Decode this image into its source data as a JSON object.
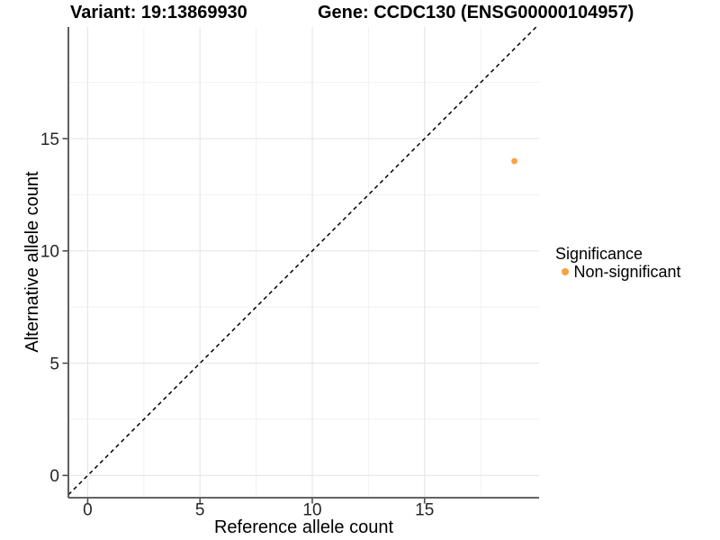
{
  "figure": {
    "title_left": "Variant: 19:13869930",
    "title_right": "Gene: CCDC130 (ENSG00000104957)"
  },
  "chart_data": {
    "type": "scatter",
    "title": "Variant: 19:13869930   Gene: CCDC130 (ENSG00000104957)",
    "xlabel": "Reference allele count",
    "ylabel": "Alternative allele count",
    "xlim": [
      -0.86,
      20.1
    ],
    "ylim": [
      -0.99,
      19.97
    ],
    "xticks": [
      0,
      5,
      10,
      15
    ],
    "yticks": [
      0,
      5,
      10,
      15
    ],
    "grid": {
      "major": true,
      "minor": true
    },
    "background": "#ffffff",
    "reference_line": {
      "kind": "abline",
      "slope": 1,
      "intercept": 0,
      "style": "dashed",
      "color": "#000000"
    },
    "series": [
      {
        "name": "Non-significant",
        "color": "#F9A242",
        "points": [
          {
            "x": 19,
            "y": 14
          }
        ]
      }
    ],
    "legend": {
      "title": "Significance",
      "position": "right",
      "entries": [
        {
          "label": "Non-significant",
          "color": "#F9A242"
        }
      ]
    }
  },
  "colors": {
    "non_significant": "#F9A242",
    "axis": "#4d4d4d",
    "grid_major": "#e7e7e7",
    "grid_minor": "#f1f1f1"
  }
}
